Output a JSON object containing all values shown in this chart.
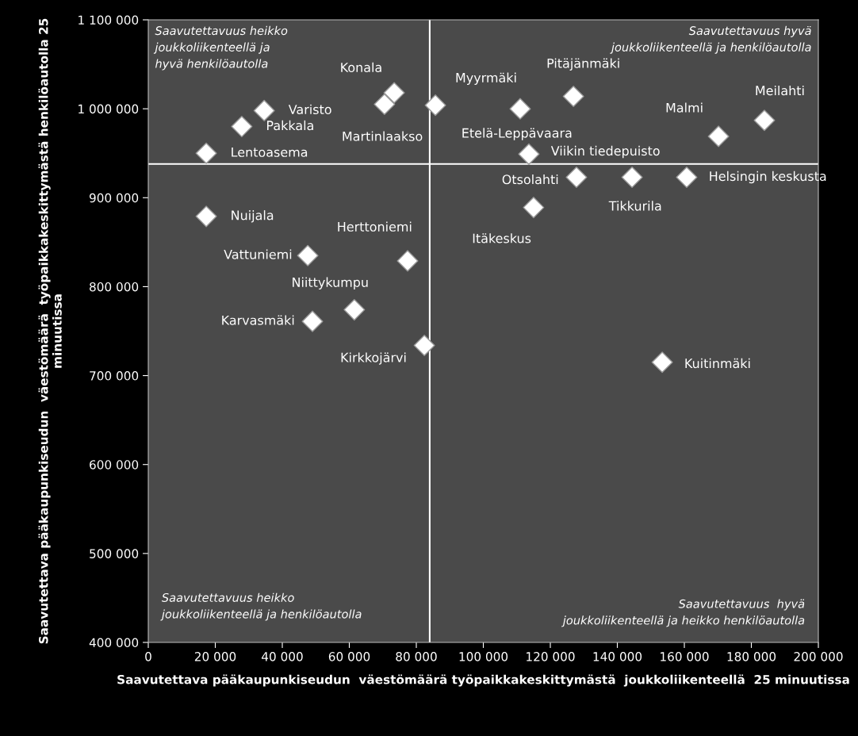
{
  "chart_data": {
    "type": "scatter",
    "xlabel": "Saavutettava pääkaupunkiseudun  väestömäärä työpaikkakeskittymästä  joukkoliikenteellä  25 minuutissa",
    "ylabel": "Saavutettava pääkaupunkiseudun  väestömäärä  työpaikkakeskittymästä henkilöautolla 25 minuutissa",
    "series": [
      {
        "color": "#ffffff",
        "marker": "diamond",
        "x": [
          17300,
          27900,
          34600,
          73400,
          70500,
          85700,
          111000,
          126900,
          170200,
          183900,
          113600,
          127800,
          144400,
          160700,
          115000,
          17300,
          47600,
          77400,
          61500,
          49000,
          82400,
          153400
        ],
        "values": [
          950000,
          980000,
          998000,
          1018000,
          1005000,
          1004000,
          1000000,
          1014000,
          969000,
          987000,
          949000,
          923000,
          923000,
          923000,
          889000,
          879000,
          835000,
          829000,
          774000,
          761000,
          734000,
          715000
        ]
      }
    ],
    "xlim": [
      0,
      200000
    ],
    "ylim": [
      400000,
      1100000
    ],
    "xticks": [
      0,
      {
        "value": 20000,
        "label": "20 000"
      },
      {
        "value": 40000,
        "label": "40 000"
      },
      {
        "value": 60000,
        "label": "60 000"
      },
      {
        "value": 80000,
        "label": "80 000"
      },
      {
        "value": 100000,
        "label": "100 000"
      },
      {
        "value": 120000,
        "label": "120 000"
      },
      {
        "value": 140000,
        "label": "140 000"
      },
      {
        "value": 160000,
        "label": "160 000"
      },
      {
        "value": 180000,
        "label": "180 000"
      },
      {
        "value": 200000,
        "label": "200 000"
      }
    ],
    "yticks": [
      {
        "value": 400000,
        "label": "400 000"
      },
      {
        "value": 500000,
        "label": "500 000"
      },
      {
        "value": 600000,
        "label": "600 000"
      },
      {
        "value": 700000,
        "label": "700 000"
      },
      {
        "value": 800000,
        "label": "800 000"
      },
      {
        "value": 900000,
        "label": "900 000"
      },
      {
        "value": 1000000,
        "label": "1 000 000"
      },
      {
        "value": 1100000,
        "label": "1 100 000"
      }
    ],
    "ref_lines": [
      {
        "axis": "x",
        "value": 84000,
        "color": "#ffffff"
      },
      {
        "axis": "y",
        "value": 938000,
        "color": "#ffffff"
      }
    ],
    "grid": false,
    "legend": false,
    "annotations": [
      {
        "text": "Lentoasema",
        "x": 17300,
        "y": 950000
      },
      {
        "text": "Pakkala",
        "x": 27900,
        "y": 980000
      },
      {
        "text": "Varisto",
        "x": 34600,
        "y": 998000
      },
      {
        "text": "Konala",
        "x": 73400,
        "y": 1018000
      },
      {
        "text": "Martinlaakso",
        "x": 70500,
        "y": 1005000
      },
      {
        "text": "Myyrmäki",
        "x": 85700,
        "y": 1004000
      },
      {
        "text": "Etelä-Leppävaara",
        "x": 111000,
        "y": 1000000
      },
      {
        "text": "Pitäjänmäki",
        "x": 126900,
        "y": 1014000
      },
      {
        "text": "Malmi",
        "x": 170200,
        "y": 969000
      },
      {
        "text": "Meilahti",
        "x": 183900,
        "y": 987000
      },
      {
        "text": "Viikin tiedepuisto",
        "x": 113600,
        "y": 949000
      },
      {
        "text": "Otsolahti",
        "x": 127800,
        "y": 923000
      },
      {
        "text": "Tikkurila",
        "x": 144400,
        "y": 923000
      },
      {
        "text": "Helsingin keskusta",
        "x": 160700,
        "y": 923000
      },
      {
        "text": "Itäkeskus",
        "x": 115000,
        "y": 889000
      },
      {
        "text": "Nuijala",
        "x": 17300,
        "y": 879000
      },
      {
        "text": "Vattuniemi",
        "x": 47600,
        "y": 835000
      },
      {
        "text": "Herttoniemi",
        "x": 77400,
        "y": 829000
      },
      {
        "text": "Niittykumpu",
        "x": 61500,
        "y": 774000
      },
      {
        "text": "Karvasmäki",
        "x": 49000,
        "y": 761000
      },
      {
        "text": "Kirkkojärvi",
        "x": 82400,
        "y": 734000
      },
      {
        "text": "Kuitinmäki",
        "x": 153400,
        "y": 715000
      },
      "Saavutettavuus heikko\njoukkoliikenteellä ja\nhyvä henkilöautolla",
      "Saavutettavuus hyvä\njoukkoliikenteellä ja henkilöautolla",
      "Saavutettavuus heikko\njoukkoliikenteellä ja henkilöautolla",
      "Saavutettavuus  hyvä\njoukkoliikenteellä ja heikko henkilöautolla"
    ]
  }
}
